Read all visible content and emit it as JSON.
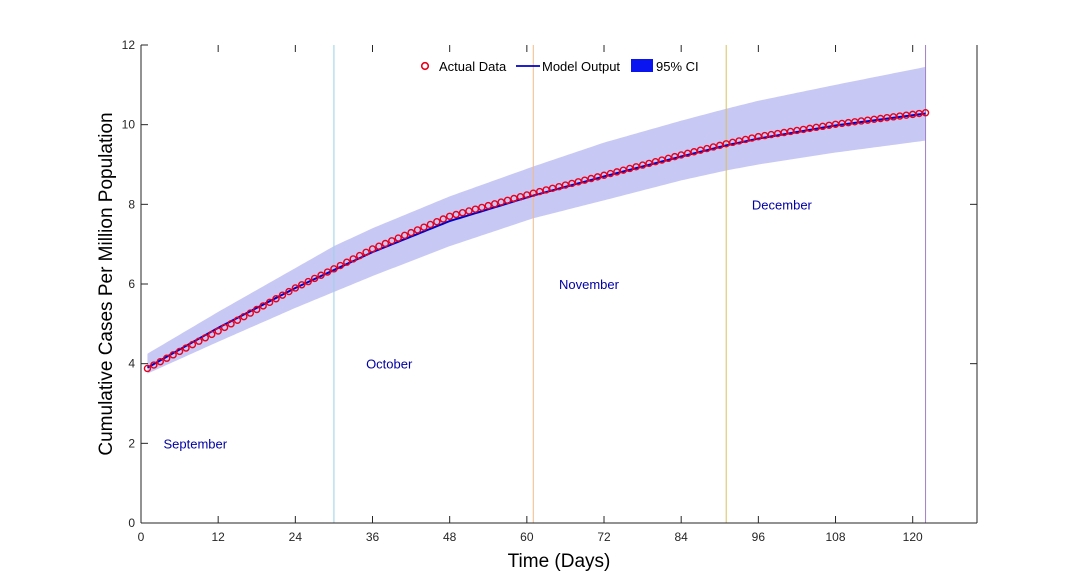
{
  "chart_data": {
    "type": "line",
    "title": "",
    "xlabel": "Time (Days)",
    "ylabel": "Cumulative Cases Per Million Population",
    "xlim": [
      0,
      130
    ],
    "ylim": [
      0,
      12
    ],
    "xticks": [
      0,
      12,
      24,
      36,
      48,
      60,
      72,
      84,
      96,
      108,
      120
    ],
    "yticks": [
      0,
      2,
      4,
      6,
      8,
      10,
      12
    ],
    "grid": false,
    "legend_position": "top-center",
    "legend": [
      {
        "name": "Actual Data",
        "marker": "circle"
      },
      {
        "name": "Model Output",
        "marker": "line"
      },
      {
        "name": "95% CI",
        "marker": "patch"
      }
    ],
    "series": [
      {
        "name": "Actual Data",
        "style": "markers",
        "color": "#e8001c",
        "x_start": 1,
        "x_end": 122,
        "anchors_x": [
          1,
          12,
          24,
          30,
          36,
          48,
          61,
          72,
          84,
          91,
          96,
          108,
          122
        ],
        "anchors_y": [
          3.88,
          4.82,
          5.9,
          6.38,
          6.88,
          7.7,
          8.28,
          8.73,
          9.24,
          9.52,
          9.7,
          10.01,
          10.3
        ]
      },
      {
        "name": "Model Output",
        "style": "line",
        "color": "#0000c8",
        "x_start": 1,
        "x_end": 122,
        "anchors_x": [
          1,
          12,
          24,
          30,
          36,
          48,
          61,
          72,
          84,
          91,
          96,
          108,
          122
        ],
        "anchors_y": [
          3.9,
          4.9,
          5.9,
          6.35,
          6.8,
          7.58,
          8.22,
          8.7,
          9.2,
          9.48,
          9.65,
          9.98,
          10.28
        ]
      },
      {
        "name": "95% CI",
        "style": "band",
        "color": "#c8c8f5",
        "anchors_x": [
          1,
          12,
          24,
          30,
          36,
          48,
          61,
          72,
          84,
          91,
          96,
          108,
          122
        ],
        "upper": [
          4.25,
          5.3,
          6.4,
          6.95,
          7.4,
          8.2,
          8.95,
          9.55,
          10.1,
          10.4,
          10.6,
          11.0,
          11.45
        ],
        "lower": [
          3.75,
          4.55,
          5.4,
          5.8,
          6.2,
          6.95,
          7.65,
          8.1,
          8.6,
          8.85,
          9.0,
          9.3,
          9.6
        ]
      }
    ],
    "month_dividers": [
      {
        "x": 30,
        "color": "#9ad0ea"
      },
      {
        "x": 61,
        "color": "#f3b98a"
      },
      {
        "x": 91,
        "color": "#d8c15a"
      },
      {
        "x": 122,
        "color": "#a080c8"
      }
    ],
    "annotations": [
      {
        "text": "September",
        "x": 3.5,
        "y": 2.0
      },
      {
        "text": "October",
        "x": 35,
        "y": 4.0
      },
      {
        "text": "November",
        "x": 65,
        "y": 6.0
      },
      {
        "text": "December",
        "x": 95,
        "y": 8.0
      }
    ],
    "right_axis_ticks": [
      4,
      8
    ]
  }
}
